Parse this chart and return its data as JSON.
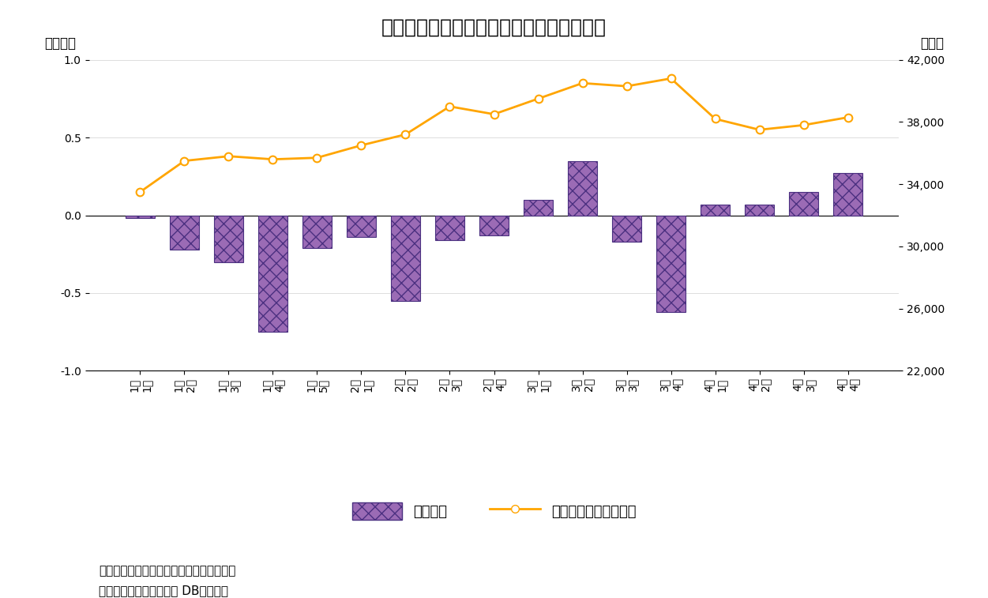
{
  "title": "図表５　信託銀行は５カ月連続の売り越し",
  "left_ylabel": "（兆円）",
  "right_ylabel": "（円）",
  "note_line1": "（注）信託銀行の現物と先物の合計、週次",
  "note_line2": "（資料）ニッセイ基礎研 DBから作成",
  "legend_bar": "信託銀行",
  "legend_line": "日経平均株価（右軸）",
  "categories": [
    "1月\n1週",
    "1月\n2週",
    "1月\n3週",
    "1月\n4週",
    "1月\n5週",
    "2月\n1週",
    "2月\n2週",
    "2月\n3週",
    "2月\n4週",
    "3月\n1週",
    "3月\n2週",
    "3月\n3週",
    "3月\n4週",
    "4月\n1週",
    "4月\n2週",
    "4月\n3週",
    "4月\n4週"
  ],
  "bar_values": [
    -0.02,
    -0.22,
    -0.3,
    -0.75,
    -0.21,
    -0.14,
    -0.55,
    -0.16,
    -0.13,
    0.1,
    0.35,
    -0.17,
    -0.62,
    0.07,
    0.07,
    0.15,
    0.27
  ],
  "line_values": [
    33500,
    35500,
    35800,
    35600,
    35700,
    36500,
    37200,
    39000,
    38500,
    39500,
    40500,
    40300,
    40800,
    38200,
    37500,
    37800,
    38300
  ],
  "ylim_left": [
    -1.0,
    1.0
  ],
  "ylim_right": [
    22000,
    42000
  ],
  "yticks_left": [
    -1.0,
    -0.5,
    0.0,
    0.5,
    1.0
  ],
  "yticks_right": [
    22000,
    26000,
    30000,
    34000,
    38000,
    42000
  ],
  "bar_color_face": "#9B6BB5",
  "bar_color_edge": "#4B3080",
  "bar_hatch": "xx",
  "line_color": "#FFA500",
  "line_marker": "o",
  "line_marker_face": "white",
  "line_marker_edge": "#FFA500",
  "background_color": "#ffffff",
  "title_fontsize": 18,
  "axis_fontsize": 12,
  "tick_fontsize": 10,
  "note_fontsize": 11
}
